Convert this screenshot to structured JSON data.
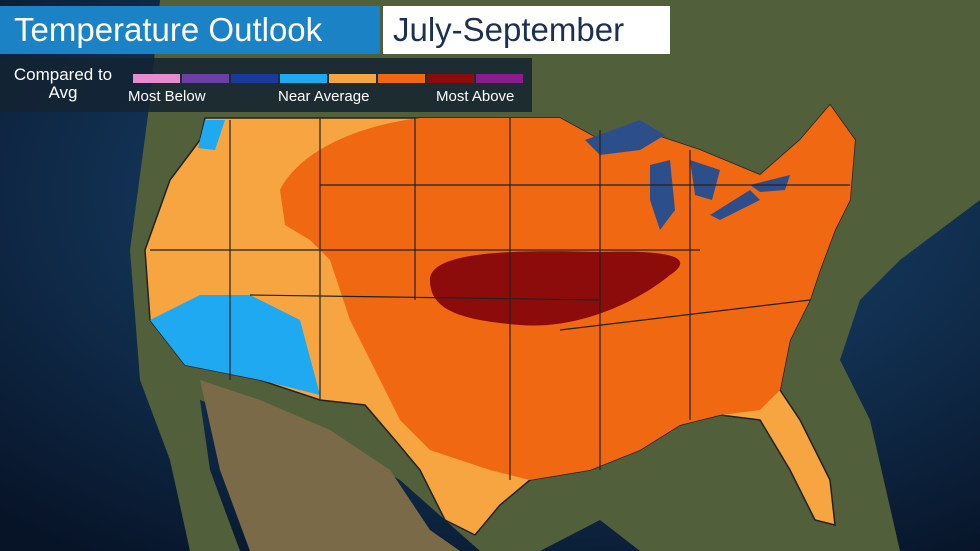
{
  "header": {
    "title": "Temperature Outlook",
    "period": "July-September"
  },
  "legend": {
    "title": "Compared to Avg",
    "colors": [
      "#e98bd0",
      "#6b3fa3",
      "#1b3a9e",
      "#1fa9f0",
      "#f7a540",
      "#f06812",
      "#8c0b0b",
      "#8b1c8e"
    ],
    "labels": [
      "Most Below",
      "Near Average",
      "Most Above"
    ]
  }
}
